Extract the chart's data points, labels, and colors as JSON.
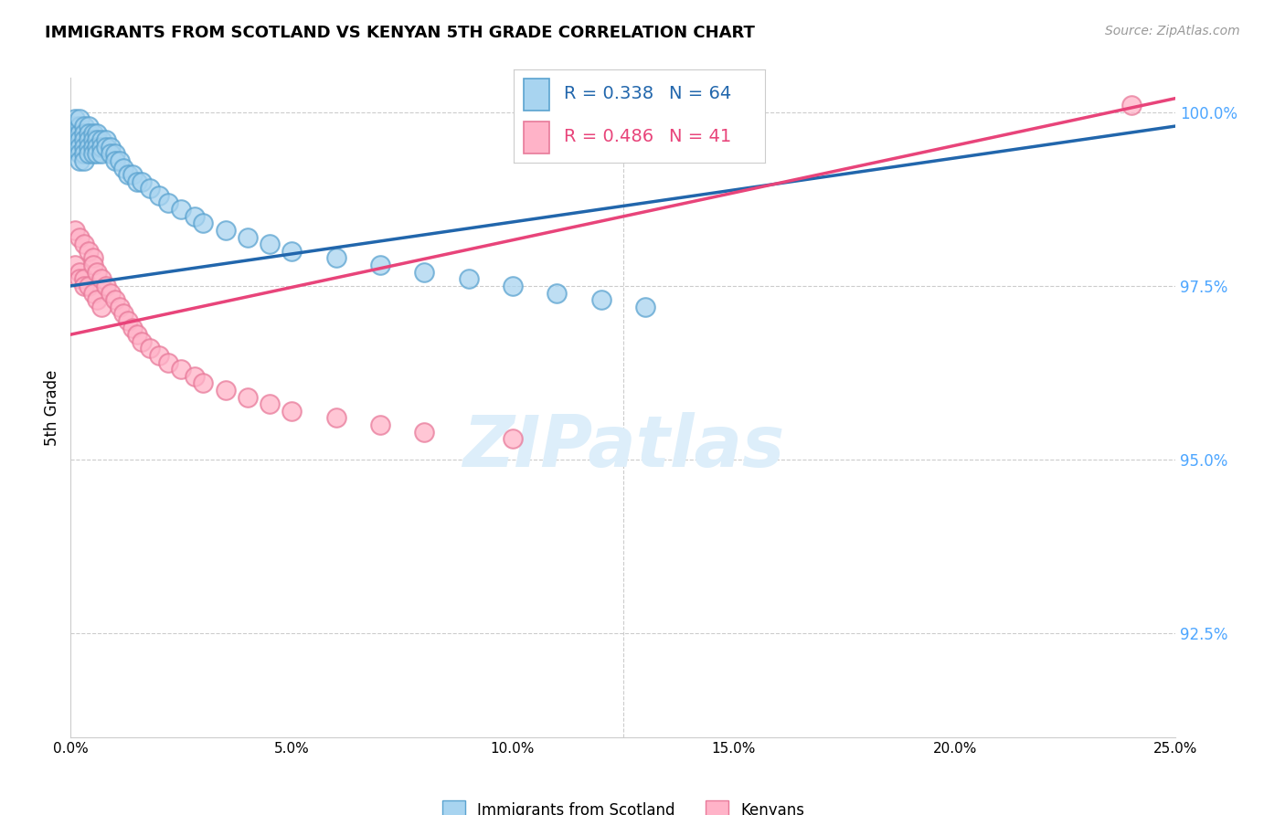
{
  "title": "IMMIGRANTS FROM SCOTLAND VS KENYAN 5TH GRADE CORRELATION CHART",
  "source": "Source: ZipAtlas.com",
  "ylabel": "5th Grade",
  "xlim": [
    0.0,
    0.25
  ],
  "ylim": [
    0.91,
    1.005
  ],
  "yticks": [
    1.0,
    0.975,
    0.95,
    0.925
  ],
  "ytick_labels": [
    "100.0%",
    "97.5%",
    "95.0%",
    "92.5%"
  ],
  "xticks": [
    0.0,
    0.05,
    0.1,
    0.15,
    0.2,
    0.25
  ],
  "xtick_labels": [
    "0.0%",
    "5.0%",
    "10.0%",
    "15.0%",
    "20.0%",
    "25.0%"
  ],
  "blue_face": "#a8d4f0",
  "blue_edge": "#5ba3d0",
  "blue_line": "#2166ac",
  "pink_face": "#ffb3c8",
  "pink_edge": "#e87a9a",
  "pink_line": "#e8447a",
  "right_axis_color": "#4da6ff",
  "grid_color": "#cccccc",
  "watermark_color": "#ddeefa",
  "legend_r1": "R = 0.338",
  "legend_n1": "N = 64",
  "legend_r2": "R = 0.486",
  "legend_n2": "N = 41",
  "legend_color1": "#2166ac",
  "legend_color2": "#e8447a",
  "bottom_legend1": "Immigrants from Scotland",
  "bottom_legend2": "Kenyans",
  "scotland_x": [
    0.001,
    0.001,
    0.001,
    0.001,
    0.001,
    0.002,
    0.002,
    0.002,
    0.002,
    0.002,
    0.002,
    0.002,
    0.003,
    0.003,
    0.003,
    0.003,
    0.003,
    0.003,
    0.004,
    0.004,
    0.004,
    0.004,
    0.004,
    0.005,
    0.005,
    0.005,
    0.005,
    0.006,
    0.006,
    0.006,
    0.006,
    0.007,
    0.007,
    0.007,
    0.008,
    0.008,
    0.009,
    0.009,
    0.01,
    0.01,
    0.011,
    0.012,
    0.013,
    0.014,
    0.015,
    0.016,
    0.018,
    0.02,
    0.022,
    0.025,
    0.028,
    0.03,
    0.035,
    0.04,
    0.045,
    0.05,
    0.06,
    0.07,
    0.08,
    0.09,
    0.1,
    0.11,
    0.12,
    0.13
  ],
  "scotland_y": [
    0.998,
    0.997,
    0.996,
    0.995,
    0.999,
    0.998,
    0.997,
    0.996,
    0.995,
    0.994,
    0.993,
    0.999,
    0.998,
    0.997,
    0.996,
    0.995,
    0.994,
    0.993,
    0.998,
    0.997,
    0.996,
    0.995,
    0.994,
    0.997,
    0.996,
    0.995,
    0.994,
    0.997,
    0.996,
    0.995,
    0.994,
    0.996,
    0.995,
    0.994,
    0.996,
    0.995,
    0.995,
    0.994,
    0.994,
    0.993,
    0.993,
    0.992,
    0.991,
    0.991,
    0.99,
    0.99,
    0.989,
    0.988,
    0.987,
    0.986,
    0.985,
    0.984,
    0.983,
    0.982,
    0.981,
    0.98,
    0.979,
    0.978,
    0.977,
    0.976,
    0.975,
    0.974,
    0.973,
    0.972
  ],
  "kenya_x": [
    0.001,
    0.001,
    0.002,
    0.002,
    0.002,
    0.003,
    0.003,
    0.003,
    0.004,
    0.004,
    0.005,
    0.005,
    0.005,
    0.006,
    0.006,
    0.007,
    0.007,
    0.008,
    0.009,
    0.01,
    0.011,
    0.012,
    0.013,
    0.014,
    0.015,
    0.016,
    0.018,
    0.02,
    0.022,
    0.025,
    0.028,
    0.03,
    0.035,
    0.04,
    0.045,
    0.05,
    0.06,
    0.07,
    0.08,
    0.1,
    0.24
  ],
  "kenya_y": [
    0.983,
    0.978,
    0.982,
    0.977,
    0.976,
    0.981,
    0.976,
    0.975,
    0.98,
    0.975,
    0.979,
    0.978,
    0.974,
    0.977,
    0.973,
    0.976,
    0.972,
    0.975,
    0.974,
    0.973,
    0.972,
    0.971,
    0.97,
    0.969,
    0.968,
    0.967,
    0.966,
    0.965,
    0.964,
    0.963,
    0.962,
    0.961,
    0.96,
    0.959,
    0.958,
    0.957,
    0.956,
    0.955,
    0.954,
    0.953,
    1.001
  ],
  "blue_trend_x": [
    0.0,
    0.25
  ],
  "blue_trend_y": [
    0.975,
    0.998
  ],
  "pink_trend_x": [
    0.0,
    0.25
  ],
  "pink_trend_y": [
    0.968,
    1.002
  ]
}
